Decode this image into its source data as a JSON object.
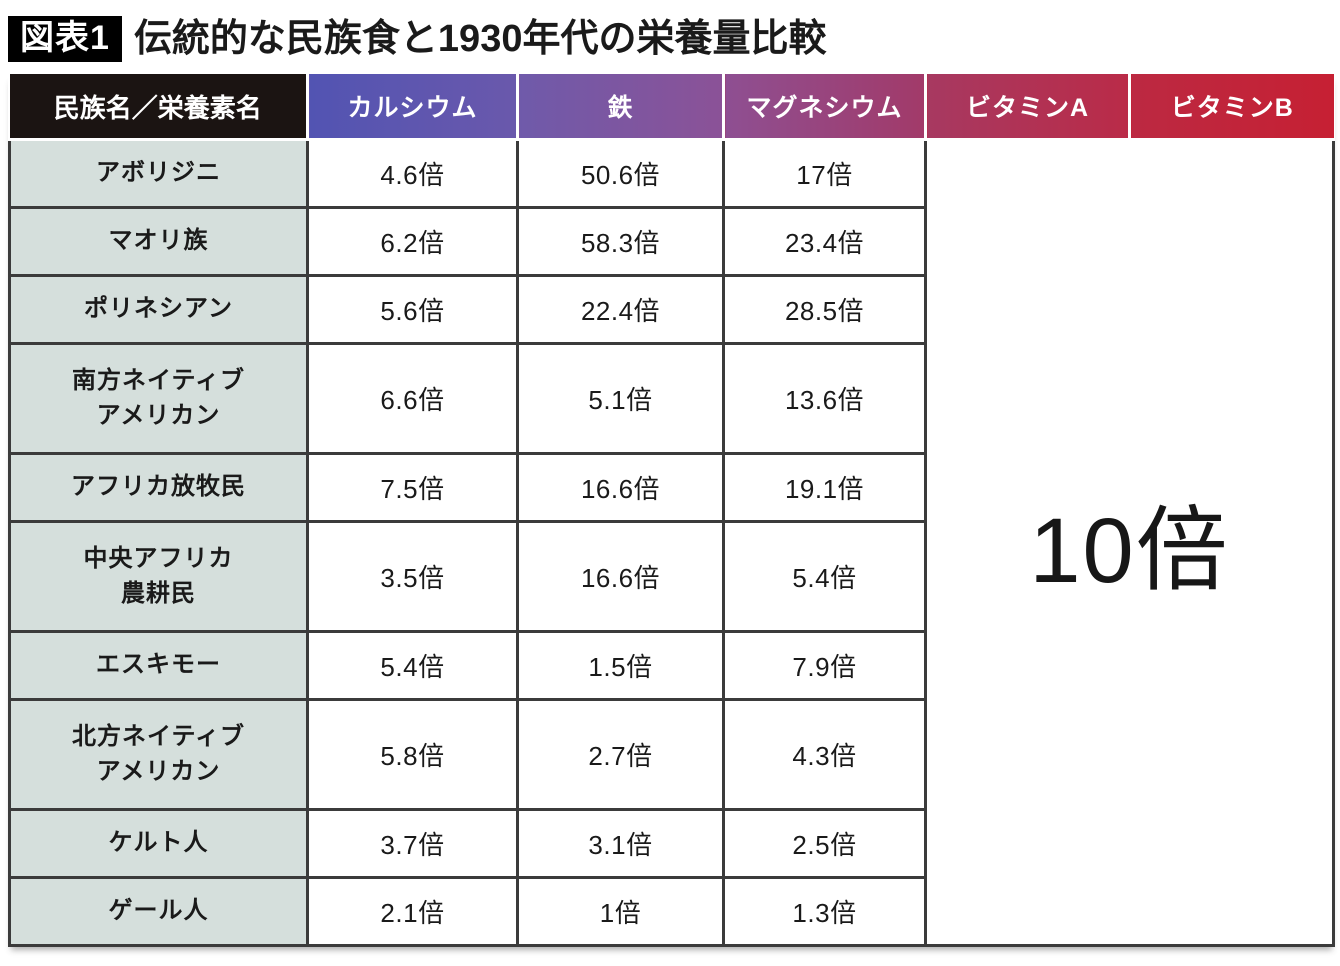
{
  "figure": {
    "badge": "図表1",
    "title": "伝統的な民族食と1930年代の栄養量比較"
  },
  "colors": {
    "badge_bg": "#000000",
    "corner_header_bg": "#1b1412",
    "row_label_bg": "#d5dfdc",
    "cell_border": "#3b3b3b",
    "header_separator": "#ffffff",
    "header_gradient": [
      {
        "from": "#5254b2",
        "to": "#6a58ac"
      },
      {
        "from": "#6f5aaa",
        "to": "#8b5297"
      },
      {
        "from": "#8e4f92",
        "to": "#a23a69"
      },
      {
        "from": "#a73961",
        "to": "#ba2b48"
      },
      {
        "from": "#bc2942",
        "to": "#c62033"
      }
    ]
  },
  "chart_data": {
    "type": "table",
    "title": "伝統的な民族食と1930年代の栄養量比較",
    "corner_header": "民族名／栄養素名",
    "columns": [
      "カルシウム",
      "鉄",
      "マグネシウム",
      "ビタミンA",
      "ビタミンB"
    ],
    "rows": [
      {
        "name": "アボリジニ",
        "values": [
          "4.6倍",
          "50.6倍",
          "17倍"
        ]
      },
      {
        "name": "マオリ族",
        "values": [
          "6.2倍",
          "58.3倍",
          "23.4倍"
        ]
      },
      {
        "name": "ポリネシアン",
        "values": [
          "5.6倍",
          "22.4倍",
          "28.5倍"
        ]
      },
      {
        "name": "南方ネイティブ\nアメリカン",
        "values": [
          "6.6倍",
          "5.1倍",
          "13.6倍"
        ]
      },
      {
        "name": "アフリカ放牧民",
        "values": [
          "7.5倍",
          "16.6倍",
          "19.1倍"
        ]
      },
      {
        "name": "中央アフリカ\n農耕民",
        "values": [
          "3.5倍",
          "16.6倍",
          "5.4倍"
        ]
      },
      {
        "name": "エスキモー",
        "values": [
          "5.4倍",
          "1.5倍",
          "7.9倍"
        ]
      },
      {
        "name": "北方ネイティブ\nアメリカン",
        "values": [
          "5.8倍",
          "2.7倍",
          "4.3倍"
        ]
      },
      {
        "name": "ケルト人",
        "values": [
          "3.7倍",
          "3.1倍",
          "2.5倍"
        ]
      },
      {
        "name": "ゲール人",
        "values": [
          "2.1倍",
          "1倍",
          "1.3倍"
        ]
      }
    ],
    "merged_cell": {
      "value": "10倍",
      "spans_columns": [
        "ビタミンA",
        "ビタミンB"
      ],
      "spans_all_rows": true
    }
  }
}
